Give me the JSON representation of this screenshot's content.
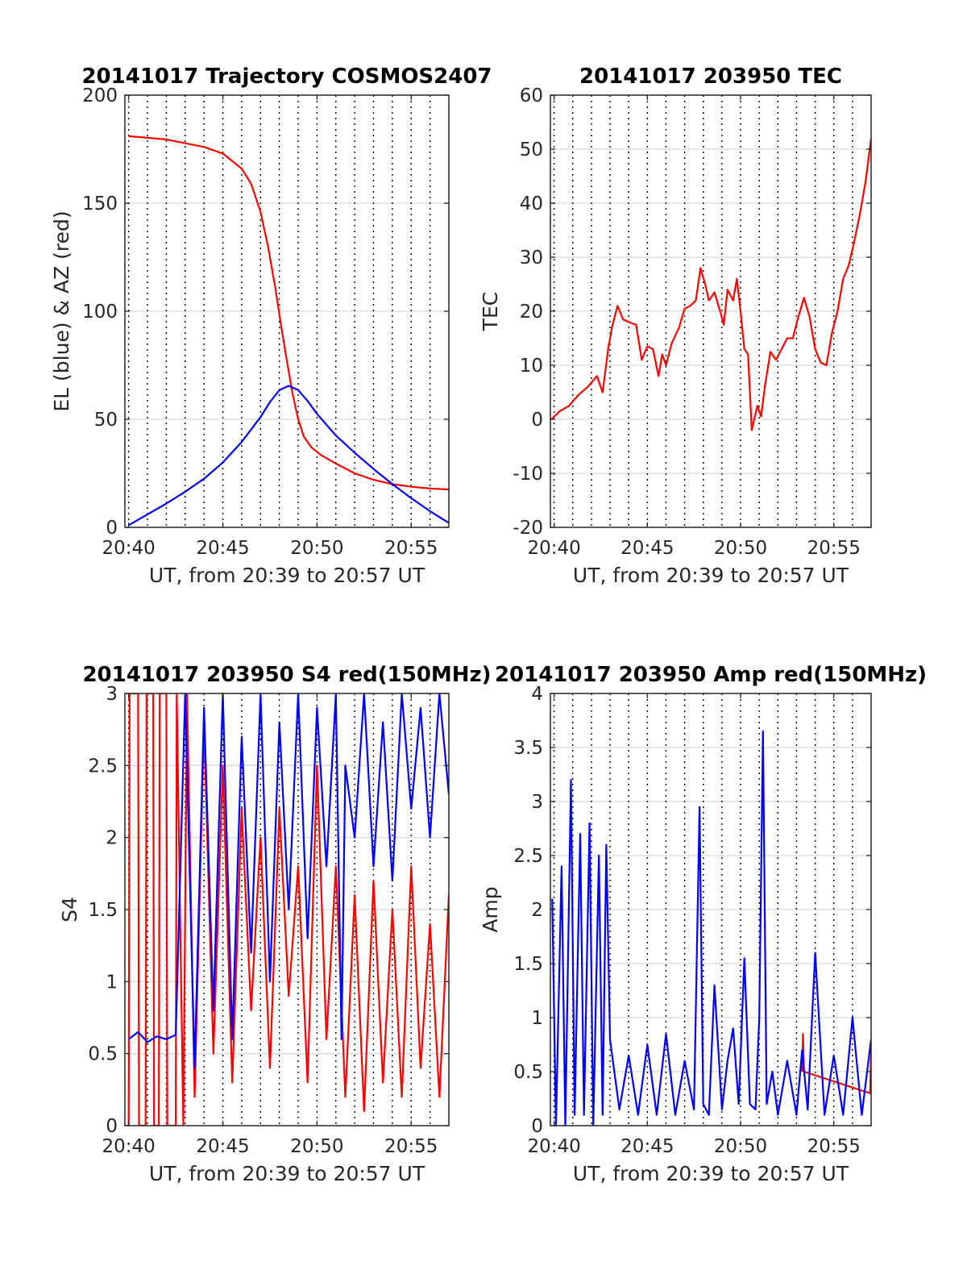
{
  "chart_data": [
    {
      "id": "trajectory",
      "type": "line",
      "title": "20141017 Trajectory COSMOS2407",
      "xlabel": "UT, from 20:39 to 20:57 UT",
      "ylabel": "EL (blue) & AZ (red)",
      "xlim": [
        39.8,
        57.0
      ],
      "ylim": [
        0,
        200
      ],
      "yticks": [
        0,
        50,
        100,
        150,
        200
      ],
      "xticks": [
        {
          "v": 40,
          "label": "20:40"
        },
        {
          "v": 45,
          "label": "20:45"
        },
        {
          "v": 50,
          "label": "20:50"
        },
        {
          "v": 55,
          "label": "20:55"
        }
      ],
      "grid": true,
      "series": [
        {
          "color": "#ff0000",
          "x": [
            40.0,
            42.0,
            44.0,
            45.0,
            46.0,
            46.5,
            47.0,
            47.4,
            47.8,
            48.1,
            48.4,
            48.7,
            49.0,
            49.3,
            49.7,
            50.2,
            51.0,
            52.0,
            53.0,
            54.0,
            55.0,
            56.0,
            57.0
          ],
          "y": [
            181,
            179.5,
            176,
            173,
            166,
            159,
            146,
            130,
            110,
            93,
            77,
            62,
            50,
            42,
            37,
            33.5,
            29.5,
            25,
            22,
            20,
            18.8,
            18,
            17.5
          ]
        },
        {
          "color": "#0000ff",
          "x": [
            40.0,
            41.0,
            42.0,
            43.0,
            44.0,
            45.0,
            46.0,
            47.0,
            47.5,
            48.0,
            48.5,
            49.0,
            49.5,
            50.0,
            51.0,
            52.0,
            53.0,
            54.0,
            55.0,
            56.0,
            57.0
          ],
          "y": [
            1,
            6,
            11,
            16.5,
            22.5,
            30,
            39.5,
            51,
            58,
            63.5,
            65.5,
            63.5,
            58.5,
            52.5,
            42.5,
            34.5,
            27,
            20,
            13.5,
            7.5,
            2
          ]
        }
      ]
    },
    {
      "id": "tec",
      "type": "line",
      "title": "20141017 203950 TEC",
      "xlabel": "UT, from 20:39 to 20:57 UT",
      "ylabel": "TEC",
      "xlim": [
        39.8,
        57.0
      ],
      "ylim": [
        -20,
        60
      ],
      "yticks": [
        -20,
        -10,
        0,
        10,
        20,
        30,
        40,
        50,
        60
      ],
      "xticks": [
        {
          "v": 40,
          "label": "20:40"
        },
        {
          "v": 45,
          "label": "20:45"
        },
        {
          "v": 50,
          "label": "20:50"
        },
        {
          "v": 55,
          "label": "20:55"
        }
      ],
      "grid": true,
      "series": [
        {
          "color": "#ff0000",
          "x": [
            39.85,
            40.3,
            40.8,
            41.3,
            41.8,
            42.3,
            42.6,
            42.9,
            43.1,
            43.4,
            43.7,
            44.0,
            44.4,
            44.7,
            45.0,
            45.3,
            45.6,
            45.8,
            46.0,
            46.3,
            46.7,
            47.0,
            47.3,
            47.6,
            47.85,
            48.1,
            48.3,
            48.6,
            48.9,
            49.1,
            49.3,
            49.6,
            49.8,
            50.0,
            50.2,
            50.4,
            50.6,
            50.9,
            51.1,
            51.3,
            51.6,
            51.9,
            52.2,
            52.5,
            52.8,
            53.1,
            53.4,
            53.7,
            54.0,
            54.3,
            54.6,
            54.9,
            55.2,
            55.5,
            55.8,
            56.1,
            56.4,
            56.7,
            57.0
          ],
          "y": [
            0,
            1.5,
            2.5,
            4.5,
            6,
            8,
            5,
            13,
            17,
            21,
            18.5,
            18,
            17.5,
            11,
            13.5,
            13,
            8,
            12,
            10,
            14,
            17,
            20.5,
            21,
            22,
            28,
            25,
            22,
            23.5,
            20,
            17.5,
            24,
            22,
            26,
            20,
            13,
            12,
            -2,
            2.5,
            0.5,
            6,
            12.5,
            11,
            13,
            15,
            15,
            19,
            22.5,
            19,
            13,
            10.5,
            10,
            16,
            20,
            26,
            28.5,
            33,
            38,
            44,
            52
          ]
        }
      ]
    },
    {
      "id": "s4",
      "type": "line",
      "title": "20141017 203950 S4 red(150MHz)",
      "xlabel": "UT, from 20:39 to 20:57 UT",
      "ylabel": "S4",
      "xlim": [
        39.8,
        57.0
      ],
      "ylim": [
        0,
        3
      ],
      "yticks": [
        0,
        0.5,
        1,
        1.5,
        2,
        2.5,
        3
      ],
      "xticks": [
        {
          "v": 40,
          "label": "20:40"
        },
        {
          "v": 45,
          "label": "20:45"
        },
        {
          "v": 50,
          "label": "20:50"
        },
        {
          "v": 55,
          "label": "20:55"
        }
      ],
      "grid": true,
      "series": [
        {
          "color": "#ff0000",
          "x": [
            40.0,
            40.05,
            40.5,
            40.55,
            40.9,
            40.95,
            41.3,
            41.35,
            41.6,
            41.65,
            42.0,
            42.05,
            42.5,
            42.55,
            42.9,
            43.1,
            43.5,
            44.0,
            44.5,
            45.0,
            45.5,
            46.0,
            46.5,
            47.0,
            47.5,
            48.0,
            48.5,
            49.0,
            49.5,
            50.0,
            50.5,
            51.0,
            51.5,
            52.0,
            52.5,
            53.0,
            53.5,
            54.0,
            54.5,
            55.0,
            55.5,
            56.0,
            56.5,
            57.0
          ],
          "y": [
            0,
            3,
            3,
            0,
            0,
            3,
            3,
            0,
            0,
            3,
            3,
            0,
            0,
            3,
            0,
            3,
            0.2,
            2.8,
            0.5,
            2.5,
            0.3,
            2.2,
            0.8,
            2.0,
            0.4,
            2.2,
            0.9,
            1.8,
            0.3,
            2.5,
            0.6,
            1.8,
            0.2,
            1.6,
            0.1,
            1.7,
            0.3,
            1.5,
            0.2,
            1.8,
            0.4,
            1.4,
            0.2,
            1.6
          ]
        },
        {
          "color": "#0000ff",
          "x": [
            40.0,
            40.5,
            41.0,
            41.5,
            42.0,
            42.5,
            43.0,
            43.5,
            44.0,
            44.5,
            45.0,
            45.5,
            46.0,
            46.5,
            47.0,
            47.5,
            48.0,
            48.5,
            49.0,
            49.5,
            50.0,
            50.5,
            51.0,
            51.3,
            51.5,
            52.0,
            52.5,
            53.0,
            53.5,
            54.0,
            54.5,
            55.0,
            55.5,
            56.0,
            56.5,
            57.0
          ],
          "y": [
            0.6,
            0.65,
            0.58,
            0.62,
            0.6,
            0.63,
            3,
            0.4,
            2.9,
            0.8,
            3,
            0.6,
            2.7,
            1.2,
            3,
            1.0,
            2.8,
            1.5,
            3,
            1.3,
            2.9,
            1.8,
            3,
            0.6,
            2.5,
            2.0,
            3,
            1.8,
            2.8,
            1.7,
            3,
            2.2,
            2.9,
            2.0,
            3,
            2.3
          ]
        }
      ]
    },
    {
      "id": "amp",
      "type": "line",
      "title": "20141017 203950 Amp red(150MHz)",
      "xlabel": "UT, from 20:39 to 20:57 UT",
      "ylabel": "Amp",
      "xlim": [
        39.8,
        57.0
      ],
      "ylim": [
        0,
        4
      ],
      "yticks": [
        0,
        0.5,
        1,
        1.5,
        2,
        2.5,
        3,
        3.5,
        4
      ],
      "xticks": [
        {
          "v": 40,
          "label": "20:40"
        },
        {
          "v": 45,
          "label": "20:45"
        },
        {
          "v": 50,
          "label": "20:50"
        },
        {
          "v": 55,
          "label": "20:55"
        }
      ],
      "grid": true,
      "series": [
        {
          "color": "#ff0000",
          "x": [
            53.3,
            53.35,
            53.4,
            56.95,
            57.0
          ],
          "y": [
            0.5,
            0.85,
            0.5,
            0.3,
            0.7
          ]
        },
        {
          "color": "#0000ff",
          "x": [
            39.9,
            40.1,
            40.4,
            40.6,
            40.9,
            41.1,
            41.4,
            41.6,
            41.9,
            42.1,
            42.4,
            42.6,
            42.8,
            43.0,
            43.5,
            44.0,
            44.5,
            45.0,
            45.5,
            46.0,
            46.5,
            47.0,
            47.5,
            47.8,
            48.0,
            48.3,
            48.6,
            49.0,
            49.3,
            49.6,
            49.9,
            50.2,
            50.5,
            50.8,
            51.0,
            51.2,
            51.4,
            51.7,
            52.0,
            52.5,
            53.0,
            53.3,
            53.6,
            54.0,
            54.5,
            55.0,
            55.5,
            56.0,
            56.5,
            57.0
          ],
          "y": [
            2.1,
            0,
            2.4,
            0,
            3.2,
            0.1,
            2.7,
            0.1,
            2.8,
            0,
            2.5,
            0.1,
            2.6,
            0.8,
            0.15,
            0.65,
            0.1,
            0.75,
            0.1,
            0.85,
            0.1,
            0.6,
            0.15,
            2.95,
            0.2,
            0.1,
            1.3,
            0.15,
            0.6,
            0.9,
            0.2,
            1.55,
            0.2,
            0.15,
            1.0,
            3.65,
            0.2,
            0.5,
            0.1,
            0.6,
            0.1,
            0.7,
            0.15,
            1.6,
            0.1,
            0.65,
            0.1,
            1.0,
            0.1,
            0.8
          ]
        }
      ]
    }
  ]
}
